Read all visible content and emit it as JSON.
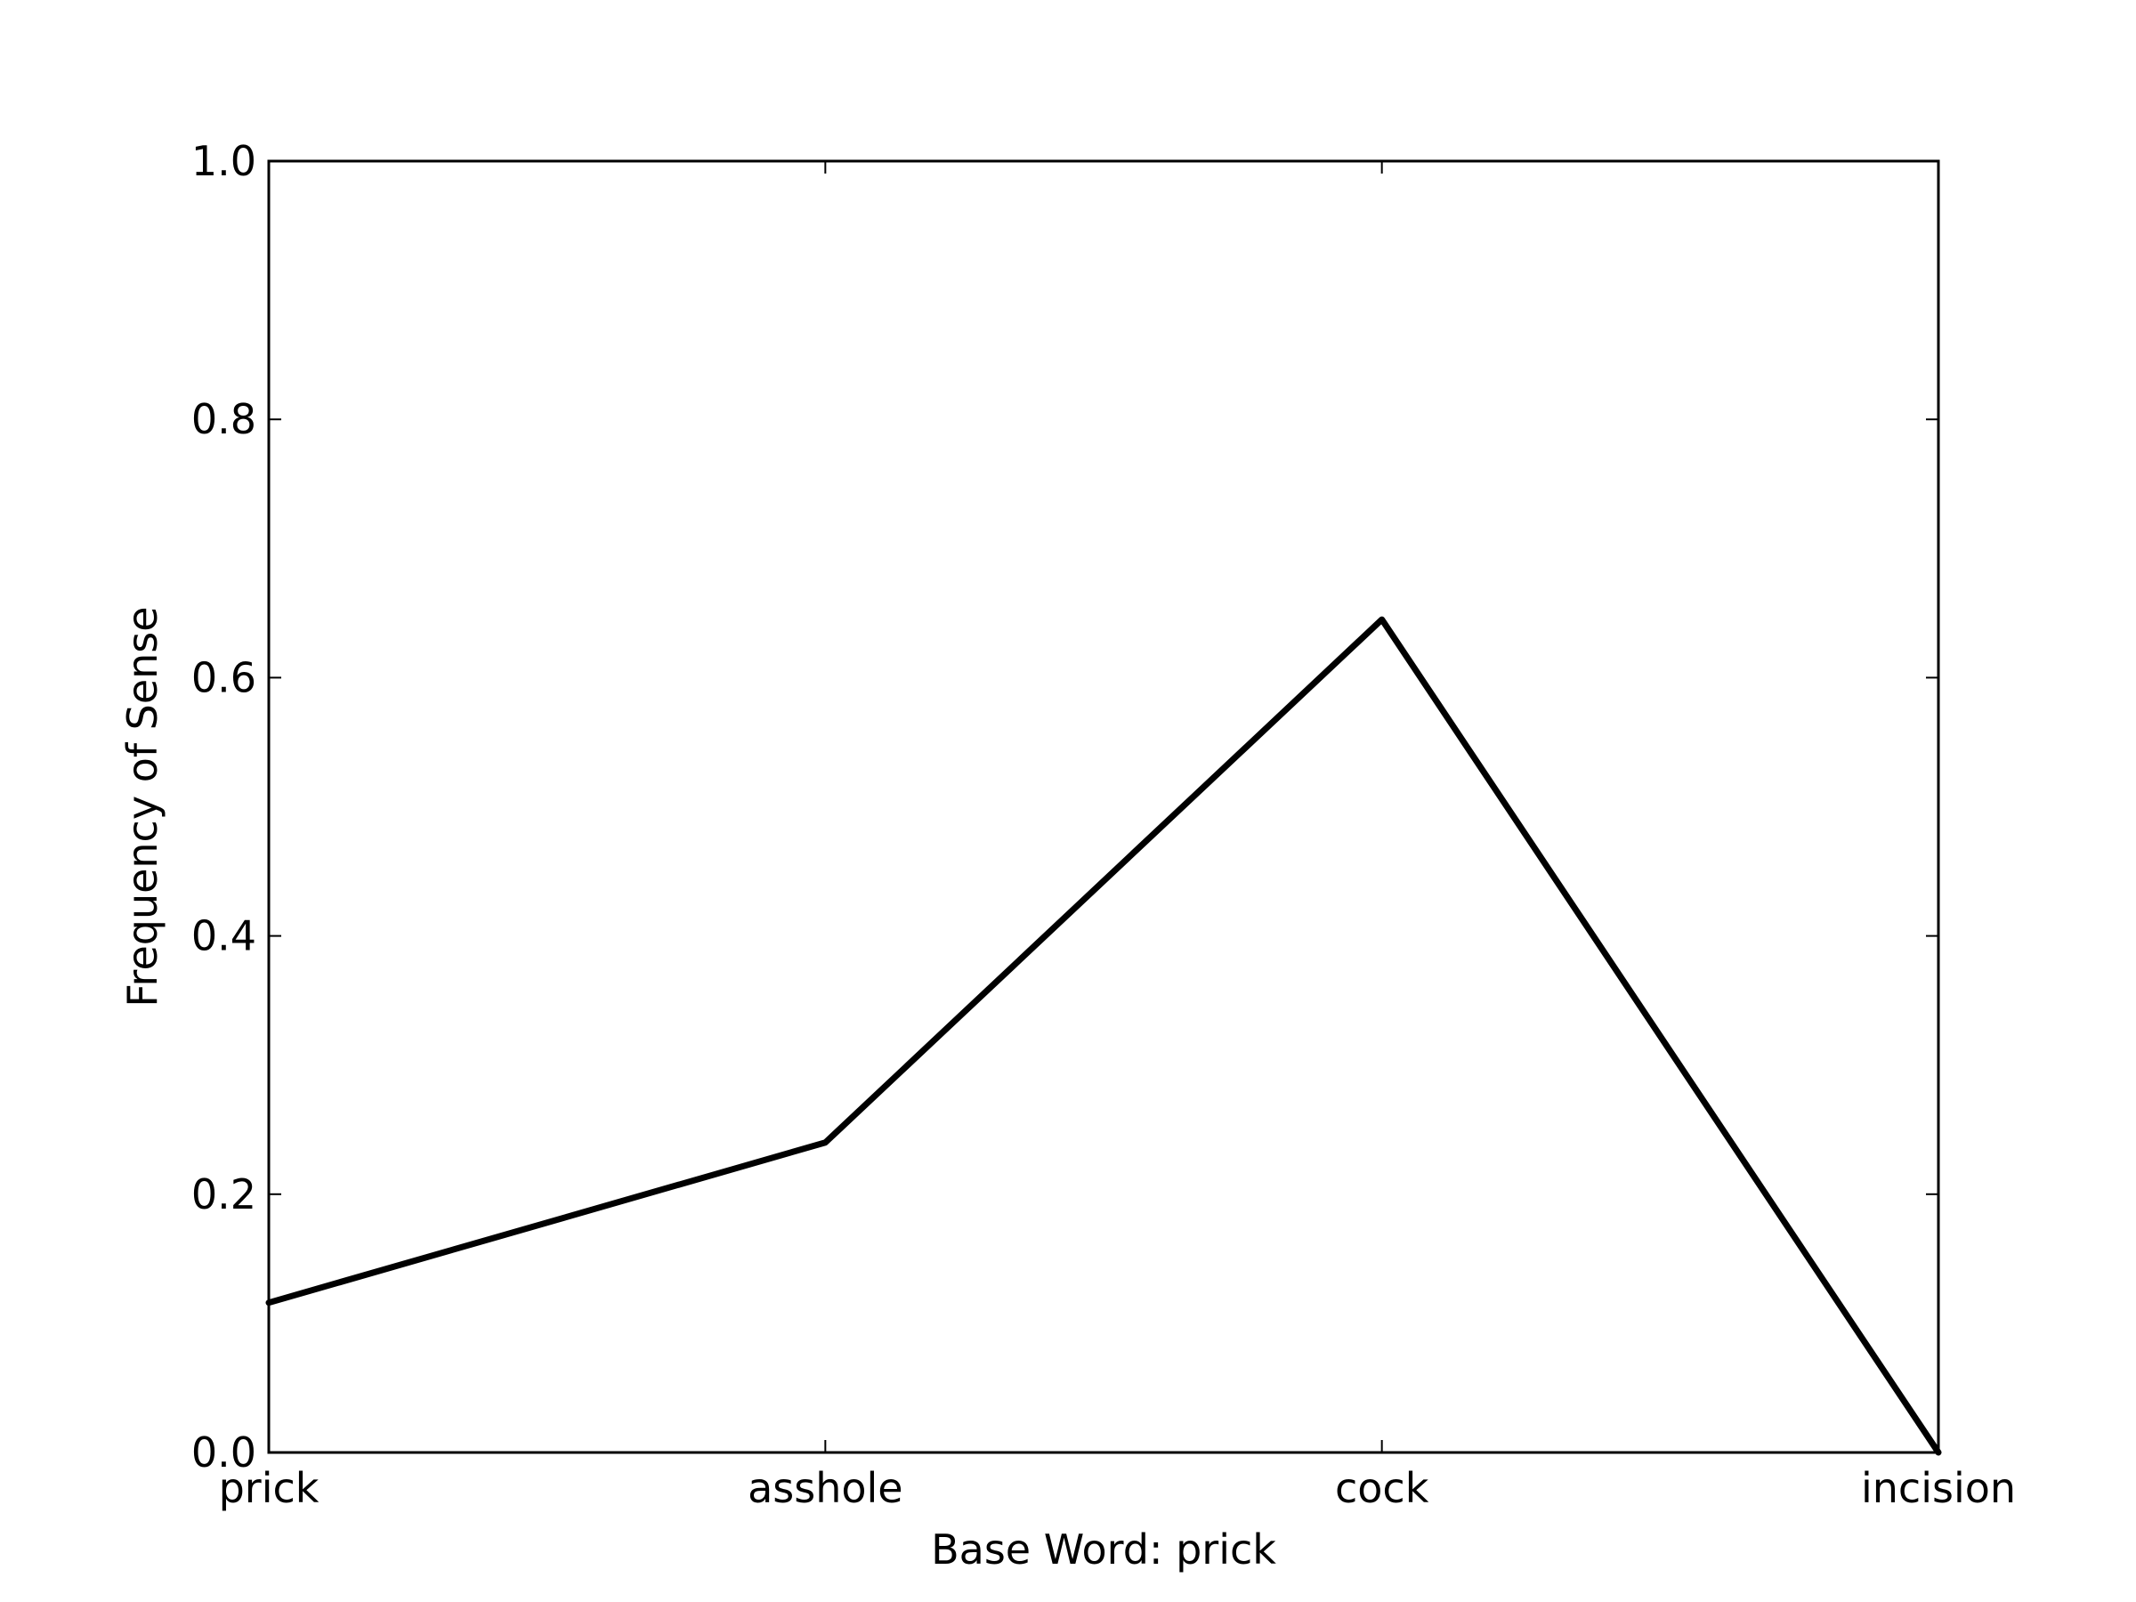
{
  "chart_data": {
    "type": "line",
    "title": "",
    "xlabel": "Base Word: prick",
    "ylabel": "Frequency of Sense",
    "categories": [
      "prick",
      "asshole",
      "cock",
      "incision"
    ],
    "series": [
      {
        "values": [
          0.116,
          0.24,
          0.645,
          0.0
        ],
        "color": "#000000"
      }
    ],
    "ylim": [
      0.0,
      1.0
    ],
    "yticks": [
      "0.0",
      "0.2",
      "0.4",
      "0.6",
      "0.8",
      "1.0"
    ],
    "grid": false,
    "legend": "none"
  }
}
